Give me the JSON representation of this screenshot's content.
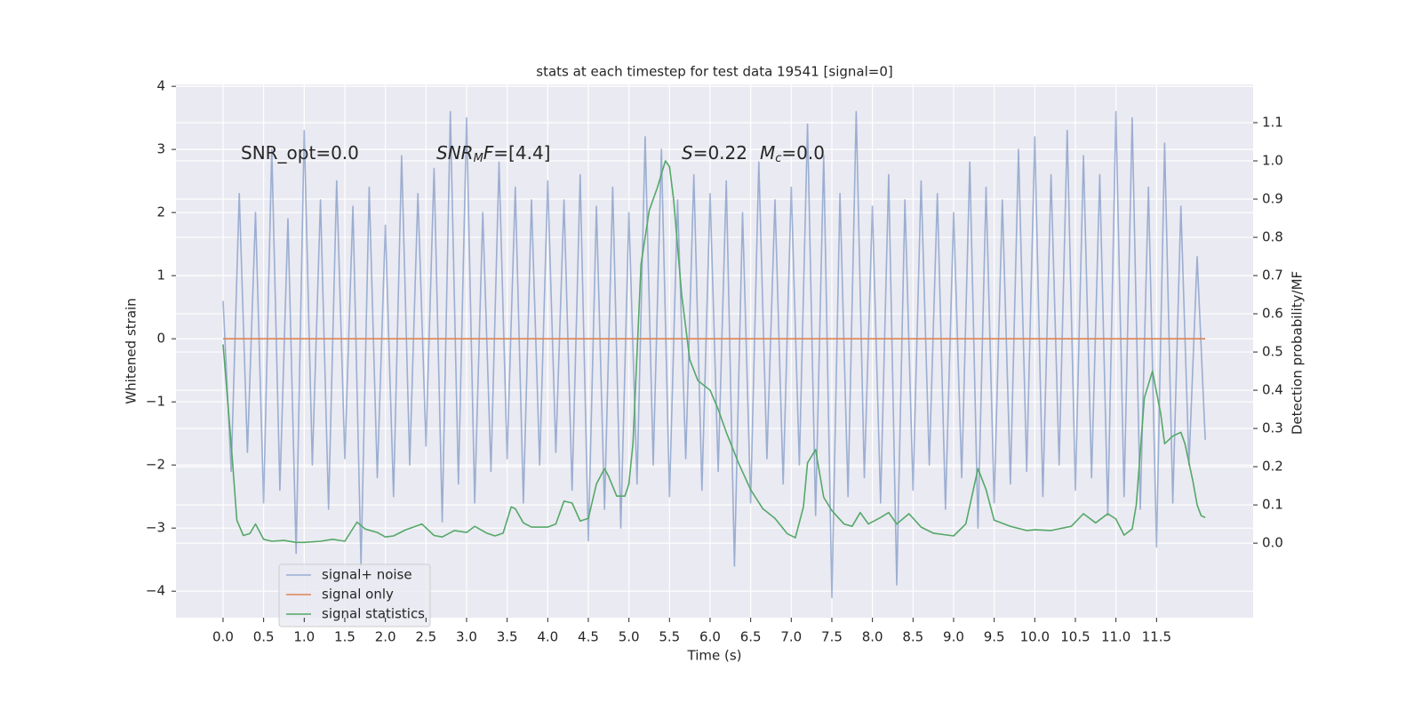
{
  "chart_data": {
    "type": "line",
    "title": "stats at each timestep for test data 19541 [signal=0]",
    "xlabel": "Time (s)",
    "ylabel": "Whitened strain",
    "y2label": "Detection probability/MF",
    "annotations": [
      [
        "SNR_opt=0.0"
      ],
      [
        "SNR",
        "M",
        "F",
        "=[4.4]"
      ],
      [
        "S",
        "=0.22",
        "M",
        "c",
        "=0.0"
      ]
    ],
    "xlim": [
      -0.58,
      12.69
    ],
    "ylim": [
      -4.42,
      4.03
    ],
    "y2lim": [
      -0.195,
      1.2
    ],
    "xticks": [
      {
        "value": 0,
        "label": "0.0"
      },
      0.5,
      {
        "value": 1,
        "label": "1.0"
      },
      1.5,
      {
        "value": 2,
        "label": "2.0"
      },
      2.5,
      {
        "value": 3,
        "label": "3.0"
      },
      3.5,
      {
        "value": 4,
        "label": "4.0"
      },
      4.5,
      {
        "value": 5,
        "label": "5.0"
      },
      5.5,
      {
        "value": 6,
        "label": "6.0"
      },
      6.5,
      {
        "value": 7,
        "label": "7.0"
      },
      7.5,
      {
        "value": 8,
        "label": "8.0"
      },
      8.5,
      {
        "value": 9,
        "label": "9.0"
      },
      9.5,
      {
        "value": 10,
        "label": "10.0"
      },
      10.5,
      {
        "value": 11,
        "label": "11.0"
      },
      11.5
    ],
    "yticks": [
      {
        "value": -4,
        "label": "−4"
      },
      {
        "value": -3,
        "label": "−3"
      },
      {
        "value": -2,
        "label": "−2"
      },
      {
        "value": -1,
        "label": "−1"
      },
      0,
      1,
      2,
      3,
      4
    ],
    "y2ticks": [
      {
        "value": 0,
        "label": "0.0"
      },
      0.1,
      0.2,
      0.3,
      0.4,
      0.5,
      0.6,
      0.7,
      0.8,
      0.9,
      {
        "value": 1,
        "label": "1.0"
      },
      1.1
    ],
    "grid": true,
    "legend": "lower left",
    "background": "#eaeaf2",
    "series": [
      {
        "name": "signal+ noise",
        "color": "#4c72b0",
        "opacity": 0.5,
        "x": [
          0,
          0.1,
          0.2,
          0.3,
          0.4,
          0.5,
          0.6,
          0.7,
          0.8,
          0.9,
          1,
          1.1,
          1.2,
          1.3,
          1.4,
          1.5,
          1.6,
          1.7,
          1.8,
          1.9,
          2,
          2.1,
          2.2,
          2.3,
          2.4,
          2.5,
          2.6,
          2.7,
          2.8,
          2.9,
          3,
          3.1,
          3.2,
          3.3,
          3.4,
          3.5,
          3.6,
          3.7,
          3.8,
          3.9,
          4,
          4.1,
          4.2,
          4.3,
          4.4,
          4.5,
          4.6,
          4.7,
          4.8,
          4.9,
          5,
          5.1,
          5.2,
          5.3,
          5.4,
          5.5,
          5.6,
          5.7,
          5.8,
          5.9,
          6,
          6.1,
          6.2,
          6.3,
          6.4,
          6.5,
          6.6,
          6.7,
          6.8,
          6.9,
          7,
          7.1,
          7.2,
          7.3,
          7.4,
          7.5,
          7.6,
          7.7,
          7.8,
          7.9,
          8,
          8.1,
          8.2,
          8.3,
          8.4,
          8.5,
          8.6,
          8.7,
          8.8,
          8.9,
          9,
          9.1,
          9.2,
          9.3,
          9.4,
          9.5,
          9.6,
          9.7,
          9.8,
          9.9,
          10,
          10.1,
          10.2,
          10.3,
          10.4,
          10.5,
          10.6,
          10.7,
          10.8,
          10.9,
          11,
          11.1,
          11.2,
          11.3,
          11.4,
          11.5,
          11.6,
          11.7,
          11.8,
          11.9,
          12,
          12.1
        ],
        "values": [
          0.6,
          -2.1,
          2.3,
          -1.8,
          2.0,
          -2.6,
          3.0,
          -2.4,
          1.9,
          -3.4,
          3.3,
          -2.0,
          2.2,
          -2.7,
          2.5,
          -1.9,
          2.1,
          -3.6,
          2.4,
          -2.2,
          1.8,
          -2.5,
          2.9,
          -2.0,
          2.3,
          -1.7,
          2.7,
          -2.9,
          3.6,
          -2.3,
          3.5,
          -2.6,
          2.0,
          -2.1,
          2.8,
          -1.9,
          2.4,
          -2.6,
          2.2,
          -2.0,
          2.5,
          -1.8,
          2.2,
          -2.4,
          2.6,
          -3.2,
          2.1,
          -2.7,
          2.4,
          -3.0,
          2.0,
          -2.3,
          3.2,
          -2.0,
          3.0,
          -2.5,
          2.2,
          -1.9,
          2.6,
          -2.4,
          2.3,
          -2.1,
          2.5,
          -3.6,
          2.0,
          -2.6,
          2.8,
          -1.9,
          2.2,
          -2.3,
          2.4,
          -2.0,
          3.4,
          -2.8,
          2.9,
          -4.1,
          2.3,
          -2.5,
          3.6,
          -2.2,
          2.1,
          -2.6,
          2.6,
          -3.9,
          2.2,
          -2.4,
          2.5,
          -2.0,
          2.3,
          -2.7,
          2.0,
          -2.2,
          2.8,
          -3.0,
          2.4,
          -2.6,
          2.2,
          -2.3,
          3.0,
          -2.1,
          3.2,
          -2.5,
          2.6,
          -2.0,
          3.3,
          -2.4,
          2.9,
          -2.2,
          2.6,
          -2.8,
          3.6,
          -2.5,
          3.5,
          -2.7,
          2.4,
          -3.3,
          3.1,
          -2.6,
          2.1,
          -2.0,
          1.3,
          -1.6
        ]
      },
      {
        "name": "signal only",
        "color": "#dd8452",
        "x": [
          0,
          12.1
        ],
        "values": [
          0,
          0
        ]
      },
      {
        "name": "signal statistics",
        "color": "#55a868",
        "axis": "y2",
        "x": [
          0,
          0.1,
          0.17,
          0.25,
          0.33,
          0.4,
          0.5,
          0.6,
          0.75,
          0.9,
          1,
          1.2,
          1.35,
          1.5,
          1.65,
          1.75,
          1.9,
          2,
          2.1,
          2.25,
          2.45,
          2.6,
          2.7,
          2.85,
          3,
          3.1,
          3.25,
          3.35,
          3.45,
          3.55,
          3.6,
          3.7,
          3.8,
          4,
          4.1,
          4.2,
          4.3,
          4.4,
          4.5,
          4.6,
          4.7,
          4.75,
          4.85,
          4.95,
          5,
          5.05,
          5.15,
          5.25,
          5.35,
          5.45,
          5.5,
          5.55,
          5.65,
          5.75,
          5.85,
          6,
          6.1,
          6.2,
          6.35,
          6.5,
          6.65,
          6.8,
          6.95,
          7.05,
          7.15,
          7.2,
          7.3,
          7.4,
          7.5,
          7.65,
          7.75,
          7.85,
          7.95,
          8.1,
          8.2,
          8.3,
          8.45,
          8.6,
          8.75,
          9,
          9.15,
          9.3,
          9.4,
          9.5,
          9.7,
          9.9,
          10,
          10.2,
          10.45,
          10.6,
          10.75,
          10.9,
          11,
          11.1,
          11.2,
          11.25,
          11.35,
          11.45,
          11.55,
          11.6,
          11.7,
          11.8,
          11.85,
          11.95,
          12,
          12.05,
          12.1
        ],
        "values": [
          0.52,
          0.26,
          0.06,
          0.02,
          0.025,
          0.05,
          0.01,
          0.005,
          0.007,
          0.002,
          0.002,
          0.005,
          0.01,
          0.005,
          0.055,
          0.037,
          0.028,
          0.016,
          0.019,
          0.035,
          0.05,
          0.02,
          0.016,
          0.033,
          0.028,
          0.044,
          0.026,
          0.019,
          0.026,
          0.095,
          0.09,
          0.053,
          0.042,
          0.042,
          0.05,
          0.11,
          0.105,
          0.058,
          0.065,
          0.155,
          0.195,
          0.175,
          0.123,
          0.123,
          0.155,
          0.26,
          0.73,
          0.87,
          0.93,
          1.0,
          0.985,
          0.9,
          0.65,
          0.48,
          0.425,
          0.4,
          0.35,
          0.29,
          0.21,
          0.14,
          0.09,
          0.065,
          0.025,
          0.014,
          0.095,
          0.21,
          0.245,
          0.12,
          0.085,
          0.05,
          0.044,
          0.08,
          0.05,
          0.067,
          0.08,
          0.05,
          0.077,
          0.042,
          0.026,
          0.019,
          0.05,
          0.195,
          0.14,
          0.06,
          0.044,
          0.033,
          0.035,
          0.033,
          0.044,
          0.077,
          0.053,
          0.077,
          0.063,
          0.021,
          0.037,
          0.1,
          0.38,
          0.45,
          0.34,
          0.26,
          0.28,
          0.29,
          0.26,
          0.16,
          0.1,
          0.072,
          0.067
        ]
      }
    ]
  }
}
